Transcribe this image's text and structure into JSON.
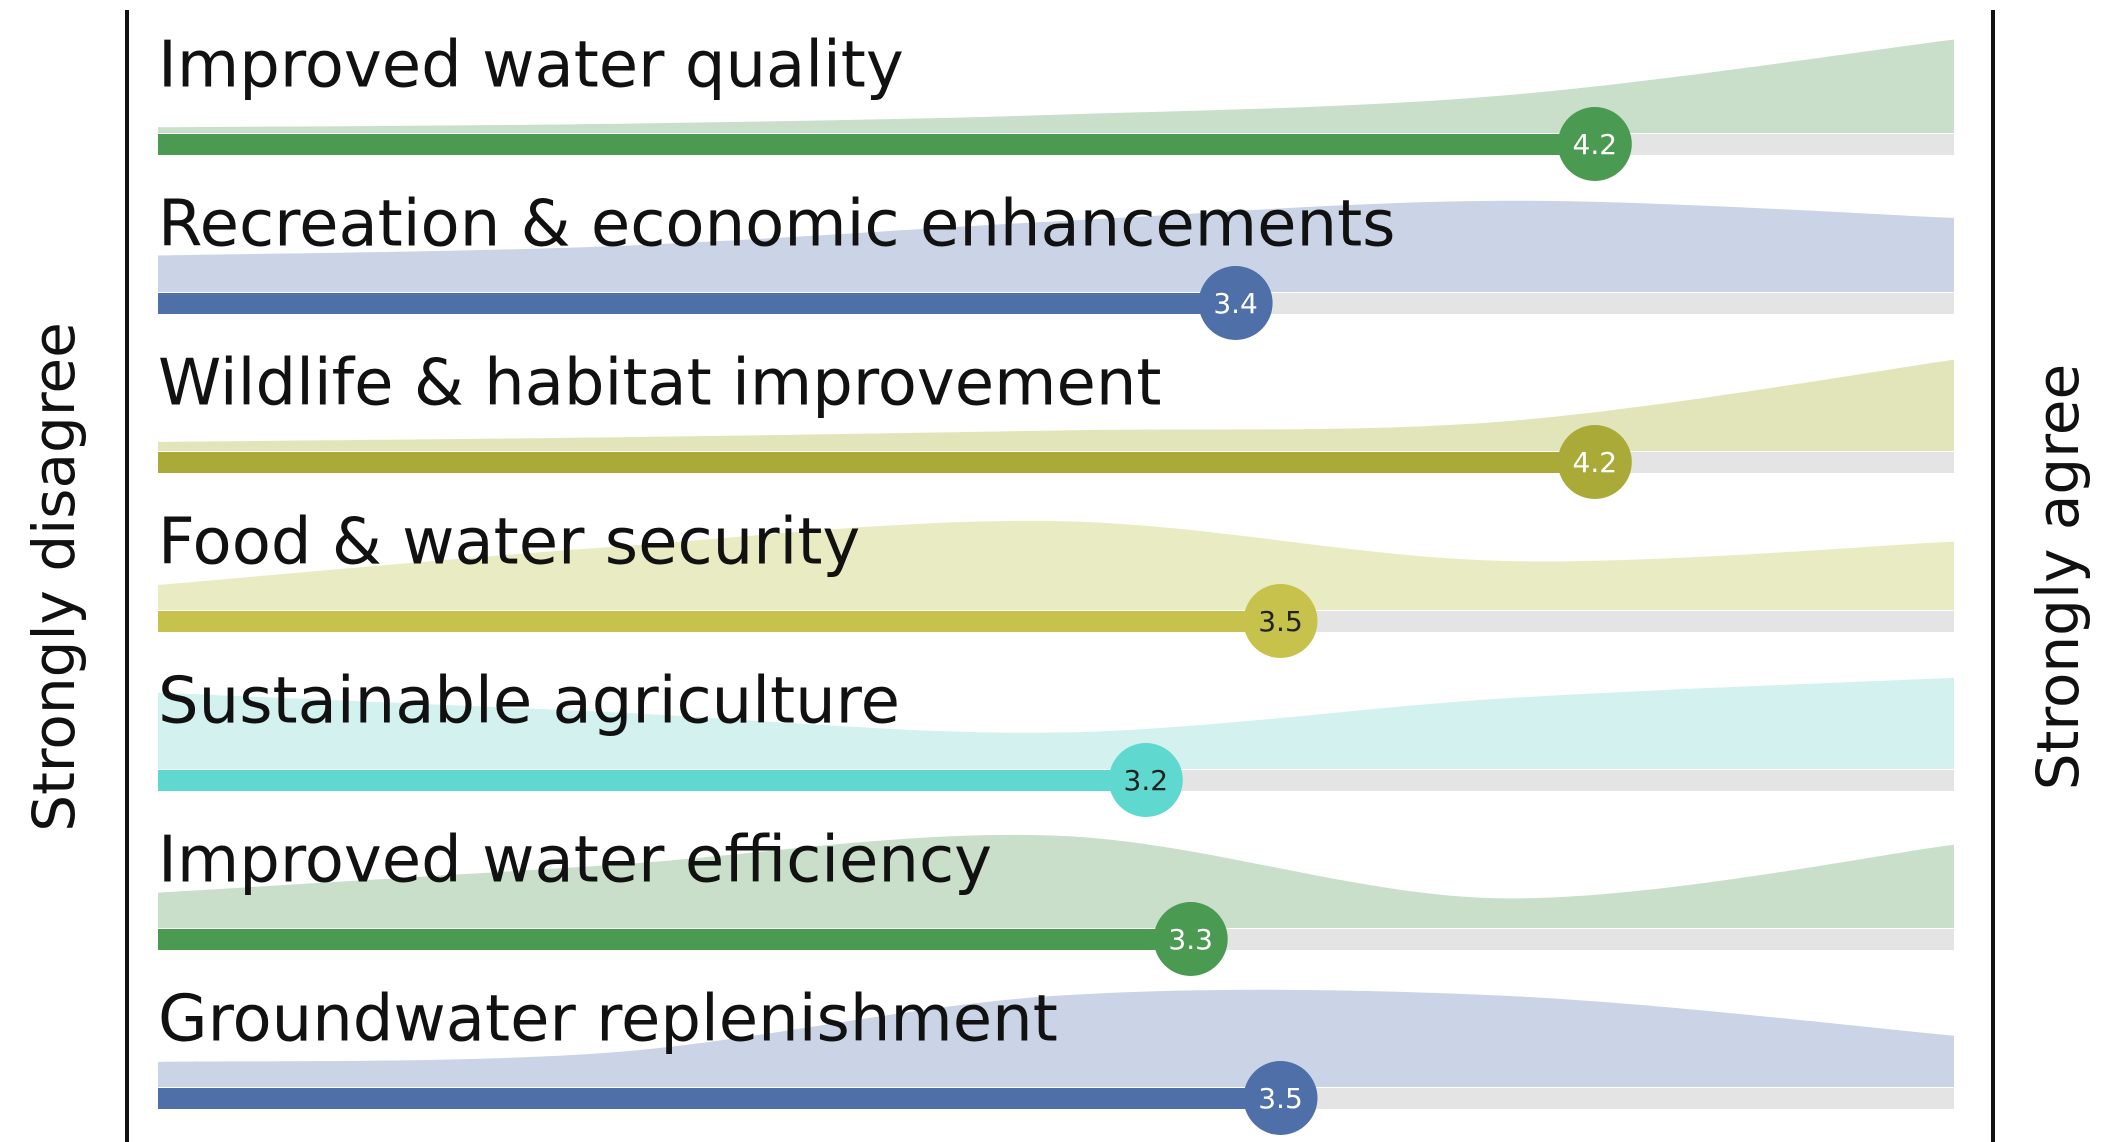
{
  "chart_data": {
    "type": "bar",
    "left_label": "Strongly disagree",
    "right_label": "Strongly agree",
    "categories": [
      "Improved water quality",
      "Recreation & economic enhancements",
      "Wildlife & habitat improvement",
      "Food & water security",
      "Sustainable agriculture",
      "Improved water efficiency",
      "Groundwater replenishment"
    ],
    "values": [
      4.2,
      3.4,
      4.2,
      3.5,
      3.2,
      3.3,
      3.5
    ],
    "colors": [
      "#4a9a52",
      "#4e6fa8",
      "#a9aa38",
      "#c6c24c",
      "#5fd8d0",
      "#4a9a52",
      "#4e6fa8"
    ],
    "area_colors": [
      "#c9dfca",
      "#cad4e6",
      "#e2e5b9",
      "#e9ecc3",
      "#d3f2ef",
      "#c9dfca",
      "#cad4e6"
    ],
    "label_colors": [
      "#ffffff",
      "#ffffff",
      "#ffffff",
      "#222222",
      "#222222",
      "#ffffff",
      "#ffffff"
    ],
    "xlim": [
      1,
      5
    ],
    "distribution_x": [
      1,
      2,
      3,
      4,
      5
    ],
    "distribution_lim": [
      0,
      100
    ],
    "distributions": [
      [
        5,
        8,
        16,
        33,
        82
      ],
      [
        32,
        40,
        62,
        80,
        65
      ],
      [
        8,
        12,
        18,
        26,
        80
      ],
      [
        22,
        55,
        78,
        43,
        60
      ],
      [
        67,
        50,
        32,
        62,
        80
      ],
      [
        31,
        55,
        81,
        26,
        73
      ],
      [
        22,
        30,
        80,
        80,
        45
      ]
    ]
  }
}
